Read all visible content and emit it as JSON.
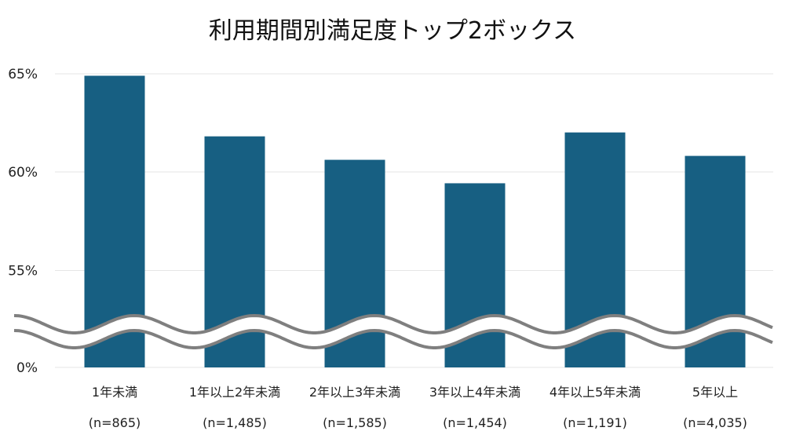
{
  "chart_data": {
    "type": "bar",
    "title": "利用期間別満足度トップ2ボックス",
    "categories": [
      "1年未満",
      "1年以上2年未満",
      "2年以上3年未満",
      "3年以上4年未満",
      "4年以上5年未満",
      "5年以上"
    ],
    "sample_sizes": [
      "(n=865)",
      "(n=1,485)",
      "(n=1,585)",
      "(n=1,454)",
      "(n=1,191)",
      "(n=4,035)"
    ],
    "values": [
      64.9,
      61.8,
      60.6,
      59.4,
      62.0,
      60.8
    ],
    "y_ticks": [
      "0%",
      "55%",
      "60%",
      "65%"
    ],
    "ylim": [
      0,
      65
    ],
    "axis_break": "between 0% and 55%",
    "grid": true,
    "bar_color": "#175f82",
    "break_line_color": "#7f7f7f",
    "xlabel": "",
    "ylabel": ""
  }
}
